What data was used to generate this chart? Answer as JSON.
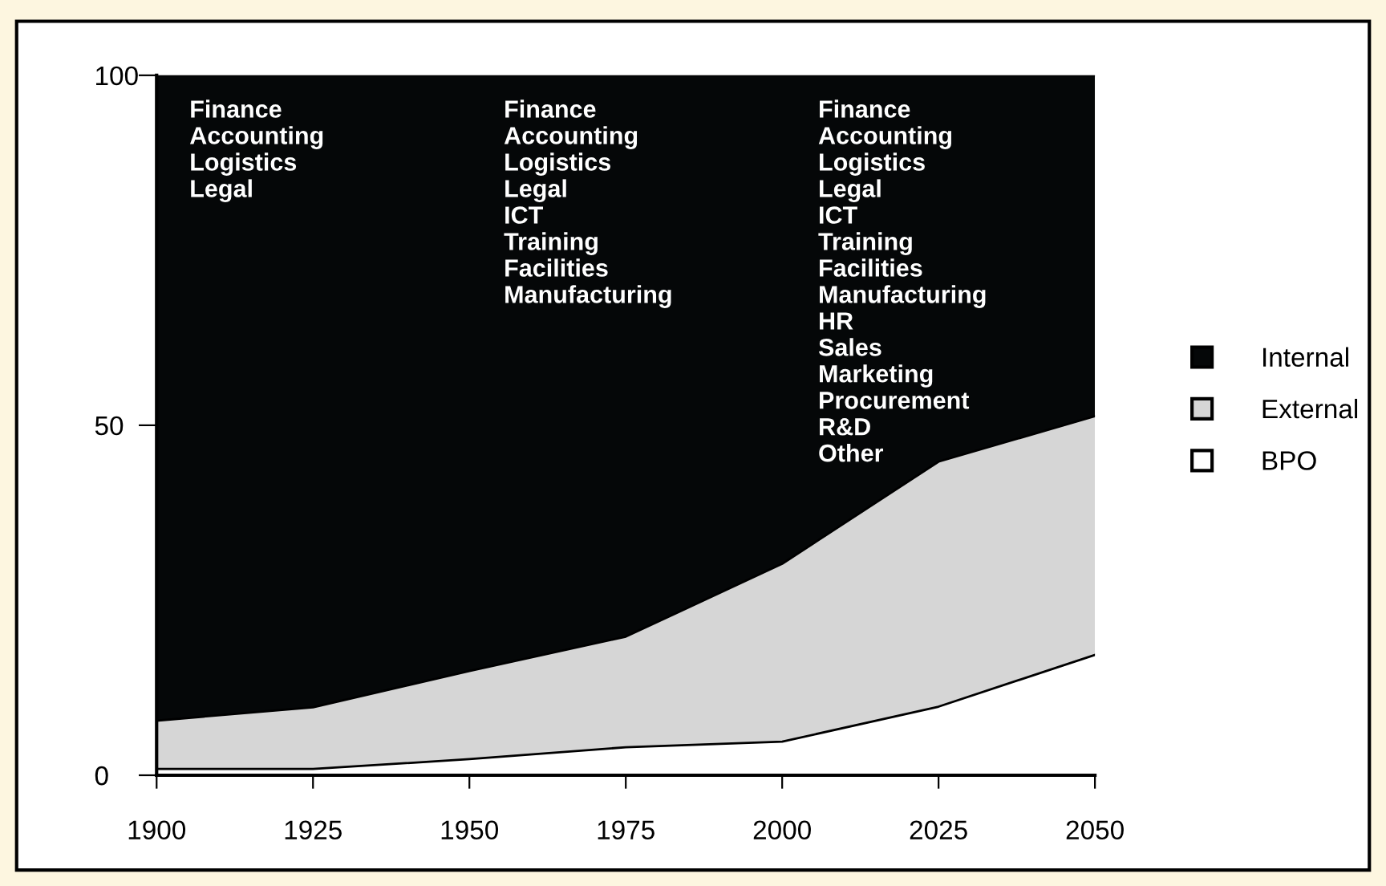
{
  "chart_data": {
    "type": "area",
    "stacked": true,
    "x": [
      1900,
      1925,
      1950,
      1975,
      2000,
      2025,
      2050
    ],
    "series": [
      {
        "name": "BPO",
        "color": "#ffffff",
        "values": [
          0.9,
          0.9,
          2.3,
          4,
          4.8,
          9.8,
          17.2
        ]
      },
      {
        "name": "External",
        "color": "#d6d6d6",
        "values": [
          6.9,
          8.8,
          12.6,
          15.8,
          25.4,
          35,
          34.1
        ]
      },
      {
        "name": "Internal",
        "color": "#050708",
        "values": [
          92.2,
          90.3,
          85.1,
          80.2,
          69.8,
          55.2,
          48.7
        ]
      }
    ],
    "xlim": [
      1900,
      2050
    ],
    "ylim": [
      0,
      100
    ],
    "xticks": [
      1900,
      1925,
      1950,
      1975,
      2000,
      2025,
      2050
    ],
    "yticks": [
      0,
      50,
      100
    ],
    "grid": false,
    "legend": "right",
    "annotations": [
      "Finance\nAccounting\nLogistics\nLegal",
      "Finance\nAccounting\nLogistics\nLegal\nICT\nTraining\nFacilities\nManufacturing",
      "Finance\nAccounting\nLogistics\nLegal\nICT\nTraining\nFacilities\nManufacturing\nHR\nSales\nMarketing\nProcurement\nR&D\nOther"
    ]
  }
}
